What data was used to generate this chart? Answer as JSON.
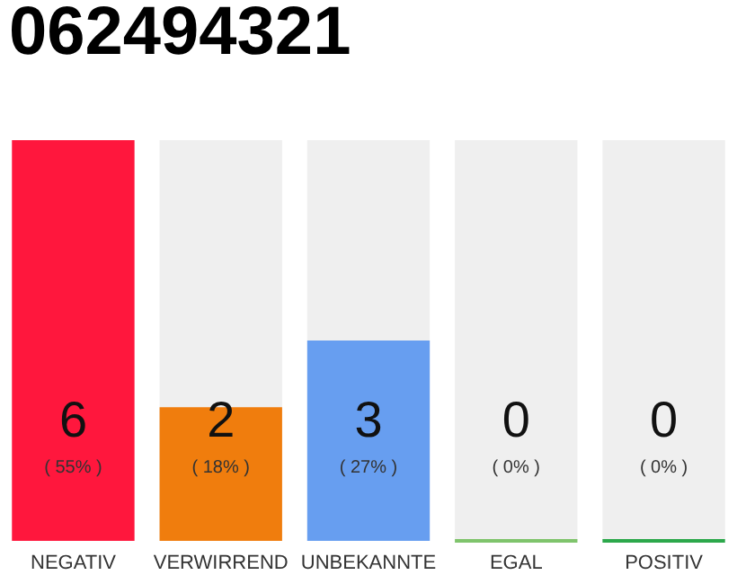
{
  "chart_data": {
    "type": "bar",
    "title": "062494321",
    "categories": [
      "NEGATIV",
      "VERWIRREND",
      "UNBEKANNTE",
      "EGAL",
      "POSITIV"
    ],
    "values": [
      6,
      2,
      3,
      0,
      0
    ],
    "colors": [
      "#ff173d",
      "#f07d0d",
      "#679ef0",
      "#7fc46c",
      "#2ca84b"
    ],
    "tick_labels": "x",
    "data_labels": true,
    "annotations": [
      "( 55% )",
      "( 18% )",
      "( 27% )",
      "( 0% )",
      "( 0% )"
    ]
  }
}
